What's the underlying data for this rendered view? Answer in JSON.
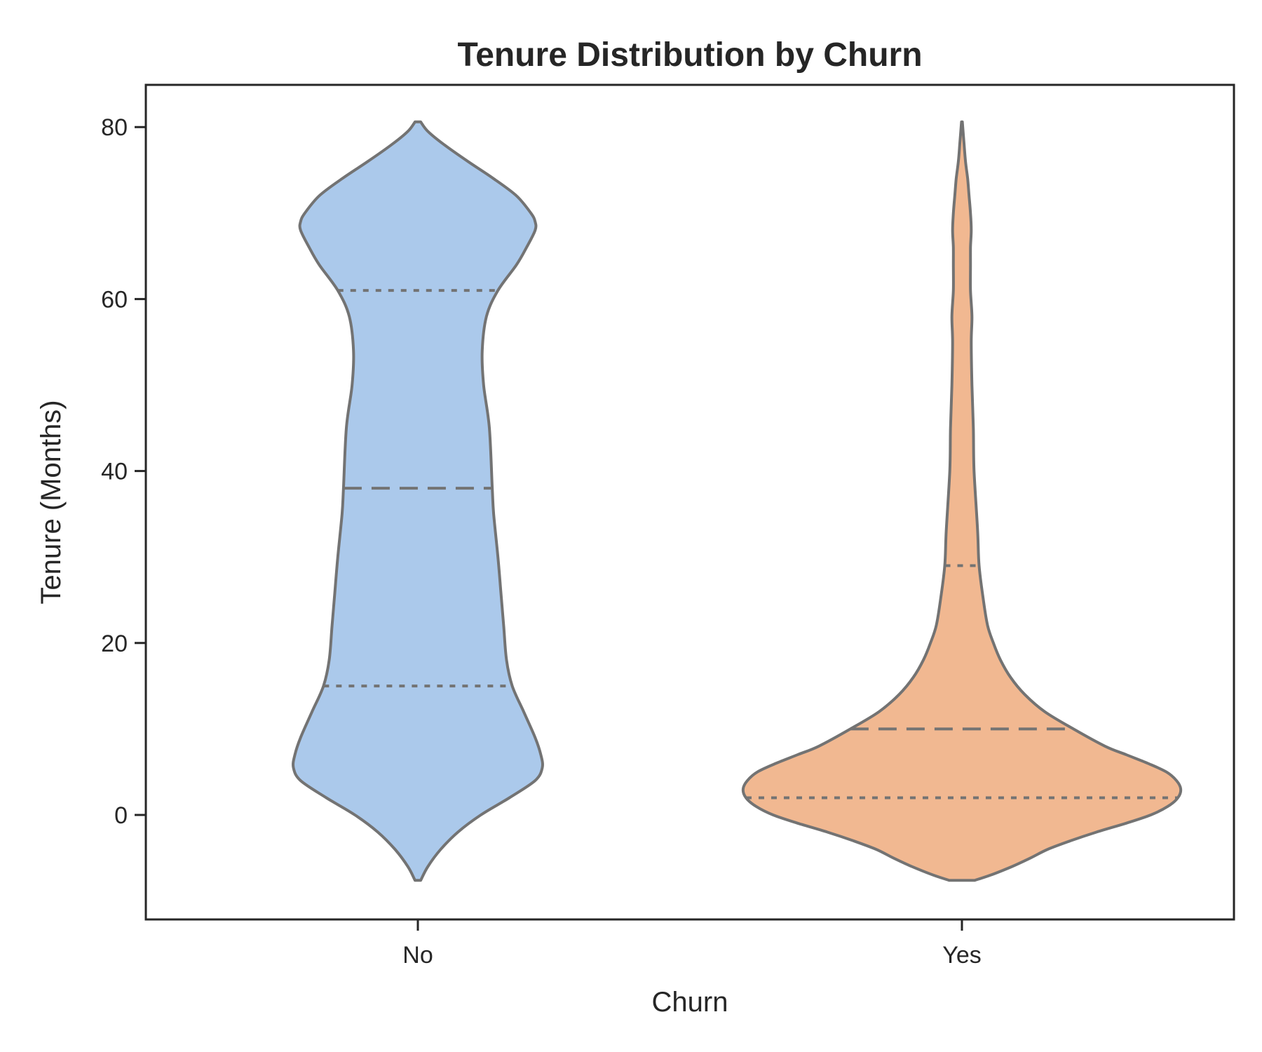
{
  "chart_data": {
    "type": "violin",
    "title": "Tenure Distribution by Churn",
    "xlabel": "Churn",
    "ylabel": "Tenure (Months)",
    "categories": [
      "No",
      "Yes"
    ],
    "ylim": [
      -12,
      85
    ],
    "yticks": [
      0,
      20,
      40,
      60,
      80
    ],
    "colors": [
      "#abc9eb",
      "#f1b891"
    ],
    "outline_color": "#737373",
    "grid": false,
    "series": [
      {
        "category": "No",
        "range": [
          -7.6,
          80.6
        ],
        "quartiles": {
          "q1": 15,
          "median": 38,
          "q3": 61
        },
        "profile": [
          [
            -7.6,
            0.02
          ],
          [
            -6,
            0.07
          ],
          [
            -4,
            0.16
          ],
          [
            -2,
            0.28
          ],
          [
            0,
            0.44
          ],
          [
            2,
            0.64
          ],
          [
            4,
            0.82
          ],
          [
            5.5,
            0.87
          ],
          [
            7,
            0.86
          ],
          [
            9,
            0.82
          ],
          [
            12,
            0.74
          ],
          [
            15,
            0.66
          ],
          [
            18,
            0.62
          ],
          [
            22,
            0.6
          ],
          [
            26,
            0.58
          ],
          [
            30,
            0.56
          ],
          [
            35,
            0.53
          ],
          [
            38,
            0.52
          ],
          [
            45,
            0.5
          ],
          [
            50,
            0.46
          ],
          [
            54,
            0.45
          ],
          [
            58,
            0.48
          ],
          [
            61,
            0.56
          ],
          [
            64,
            0.69
          ],
          [
            66,
            0.76
          ],
          [
            68,
            0.82
          ],
          [
            69,
            0.82
          ],
          [
            70,
            0.79
          ],
          [
            72,
            0.69
          ],
          [
            74,
            0.53
          ],
          [
            76,
            0.35
          ],
          [
            78,
            0.18
          ],
          [
            79.5,
            0.07
          ],
          [
            80.6,
            0.02
          ]
        ]
      },
      {
        "category": "Yes",
        "range": [
          -7.6,
          80.6
        ],
        "quartiles": {
          "q1": 2,
          "median": 10,
          "q3": 29
        },
        "profile": [
          [
            -7.6,
            0.09
          ],
          [
            -7,
            0.2
          ],
          [
            -6,
            0.35
          ],
          [
            -5,
            0.48
          ],
          [
            -4,
            0.6
          ],
          [
            -3,
            0.76
          ],
          [
            -2,
            0.94
          ],
          [
            -1,
            1.14
          ],
          [
            0,
            1.32
          ],
          [
            1,
            1.44
          ],
          [
            2,
            1.51
          ],
          [
            3,
            1.53
          ],
          [
            4,
            1.5
          ],
          [
            5,
            1.43
          ],
          [
            6,
            1.3
          ],
          [
            7,
            1.15
          ],
          [
            8,
            1.0
          ],
          [
            10,
            0.78
          ],
          [
            12,
            0.58
          ],
          [
            14,
            0.44
          ],
          [
            16,
            0.34
          ],
          [
            18,
            0.27
          ],
          [
            20,
            0.22
          ],
          [
            22,
            0.18
          ],
          [
            25,
            0.15
          ],
          [
            29,
            0.12
          ],
          [
            33,
            0.11
          ],
          [
            40,
            0.085
          ],
          [
            45,
            0.08
          ],
          [
            50,
            0.07
          ],
          [
            55,
            0.065
          ],
          [
            58,
            0.07
          ],
          [
            61,
            0.06
          ],
          [
            64,
            0.06
          ],
          [
            66,
            0.06
          ],
          [
            68,
            0.065
          ],
          [
            70,
            0.06
          ],
          [
            72,
            0.05
          ],
          [
            74,
            0.04
          ],
          [
            76,
            0.025
          ],
          [
            78,
            0.015
          ],
          [
            80.6,
            0.003
          ]
        ]
      }
    ]
  }
}
